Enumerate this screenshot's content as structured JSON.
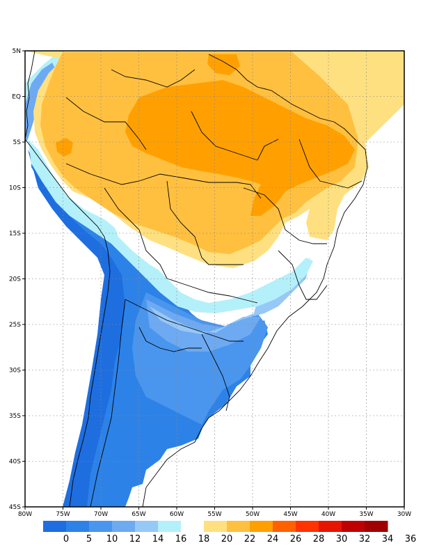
{
  "map": {
    "lon_range": [
      -80,
      -30
    ],
    "lat_range": [
      -45,
      5
    ],
    "lon_ticks": [
      {
        "value": -80,
        "label": "80W"
      },
      {
        "value": -75,
        "label": "75W"
      },
      {
        "value": -70,
        "label": "70W"
      },
      {
        "value": -65,
        "label": "65W"
      },
      {
        "value": -60,
        "label": "60W"
      },
      {
        "value": -55,
        "label": "55W"
      },
      {
        "value": -50,
        "label": "50W"
      },
      {
        "value": -45,
        "label": "45W"
      },
      {
        "value": -40,
        "label": "40W"
      },
      {
        "value": -35,
        "label": "35W"
      },
      {
        "value": -30,
        "label": "30W"
      }
    ],
    "lat_ticks": [
      {
        "value": 5,
        "label": "5N"
      },
      {
        "value": 0,
        "label": "EQ"
      },
      {
        "value": -5,
        "label": "5S"
      },
      {
        "value": -10,
        "label": "10S"
      },
      {
        "value": -15,
        "label": "15S"
      },
      {
        "value": -20,
        "label": "20S"
      },
      {
        "value": -25,
        "label": "25S"
      },
      {
        "value": -30,
        "label": "30S"
      },
      {
        "value": -35,
        "label": "35S"
      },
      {
        "value": -40,
        "label": "40S"
      },
      {
        "value": -45,
        "label": "45S"
      }
    ]
  },
  "colorbar": {
    "colors": [
      "#1e6ee0",
      "#2d82e8",
      "#4a96ee",
      "#6eaaf2",
      "#96c8f8",
      "#b4f0fa",
      "#ffffff",
      "#ffe080",
      "#ffc040",
      "#ffa000",
      "#ff6000",
      "#ff3200",
      "#e61400",
      "#c00000",
      "#a00000"
    ],
    "labels": [
      "0",
      "5",
      "10",
      "12",
      "14",
      "16",
      "18",
      "20",
      "22",
      "24",
      "26",
      "28",
      "30",
      "32",
      "34",
      "36"
    ]
  }
}
